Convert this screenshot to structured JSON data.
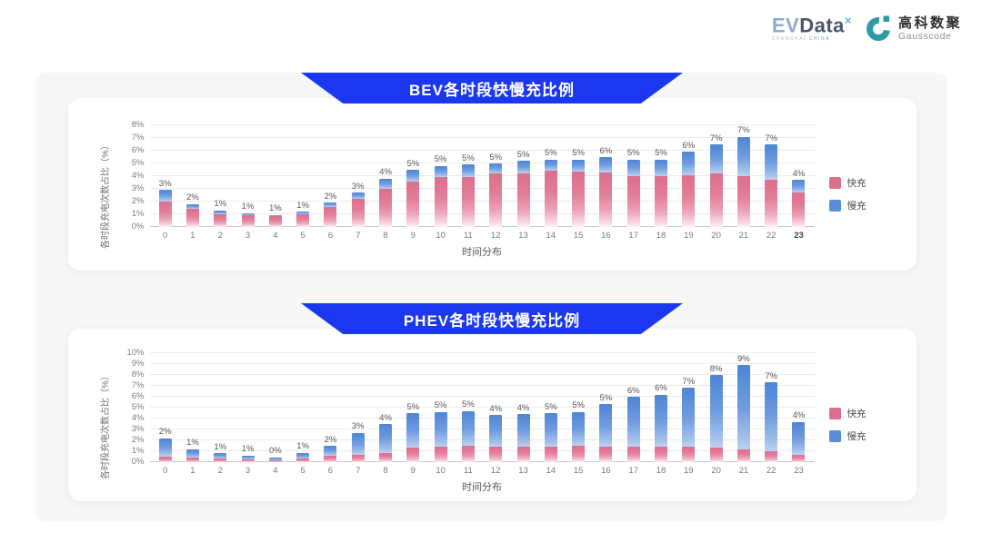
{
  "header": {
    "evdata_logo": {
      "ev": "EV",
      "data": "Data",
      "sup": "×",
      "sub_left": "SHANGHAI",
      "sub_right": "CHINA"
    },
    "gausscode_logo": {
      "cn": "高科数聚",
      "en": "Gausscode"
    }
  },
  "colors": {
    "banner_blue": "#1b38f0",
    "fast_pink": "#d9708c",
    "slow_blue": "#5b8cd8",
    "gausscode_teal": "#2d9aa8"
  },
  "chart_data": [
    {
      "type": "bar",
      "stacked": true,
      "title": "BEV各时段快慢充比例",
      "xlabel": "时间分布",
      "ylabel": "各时段充电次数占比（%）",
      "ylim": [
        0,
        8
      ],
      "grid": true,
      "legend_position": "right",
      "ytick_labels": [
        "0%",
        "1%",
        "2%",
        "3%",
        "4%",
        "5%",
        "6%",
        "7%",
        "8%"
      ],
      "categories": [
        "0",
        "1",
        "2",
        "3",
        "4",
        "5",
        "6",
        "7",
        "8",
        "9",
        "10",
        "11",
        "12",
        "13",
        "14",
        "15",
        "16",
        "17",
        "18",
        "19",
        "20",
        "21",
        "22",
        "23"
      ],
      "emphasized_tick": "23",
      "series": [
        {
          "name": "快充",
          "color": "#d9708c",
          "values": [
            2.0,
            1.4,
            1.0,
            0.9,
            0.85,
            1.0,
            1.6,
            2.2,
            3.0,
            3.6,
            3.9,
            3.9,
            4.2,
            4.2,
            4.4,
            4.35,
            4.3,
            4.0,
            4.0,
            4.1,
            4.2,
            4.0,
            3.7,
            2.7
          ]
        },
        {
          "name": "慢充",
          "color": "#5b8cd8",
          "values": [
            0.9,
            0.4,
            0.3,
            0.2,
            0.1,
            0.2,
            0.3,
            0.5,
            0.8,
            0.9,
            0.9,
            1.0,
            0.8,
            1.0,
            0.9,
            0.95,
            1.2,
            1.3,
            1.3,
            1.8,
            2.3,
            3.1,
            2.8,
            1.0
          ]
        }
      ],
      "bar_total_labels": [
        "3%",
        "2%",
        "1%",
        "1%",
        "1%",
        "1%",
        "2%",
        "3%",
        "4%",
        "5%",
        "5%",
        "5%",
        "5%",
        "5%",
        "5%",
        "5%",
        "6%",
        "5%",
        "5%",
        "6%",
        "7%",
        "7%",
        "7%",
        "4%"
      ]
    },
    {
      "type": "bar",
      "stacked": true,
      "title": "PHEV各时段快慢充比例",
      "xlabel": "时间分布",
      "ylabel": "各时段充电次数占比（%）",
      "ylim": [
        0,
        10
      ],
      "grid": true,
      "legend_position": "right",
      "ytick_labels": [
        "0%",
        "1%",
        "2%",
        "3%",
        "4%",
        "5%",
        "6%",
        "7%",
        "8%",
        "9%",
        "10%"
      ],
      "categories": [
        "0",
        "1",
        "2",
        "3",
        "4",
        "5",
        "6",
        "7",
        "8",
        "9",
        "10",
        "11",
        "12",
        "13",
        "14",
        "15",
        "16",
        "17",
        "18",
        "19",
        "20",
        "21",
        "22",
        "23"
      ],
      "emphasized_tick": "",
      "series": [
        {
          "name": "快充",
          "color": "#d9708c",
          "values": [
            0.5,
            0.4,
            0.3,
            0.25,
            0.2,
            0.35,
            0.55,
            0.7,
            0.8,
            1.3,
            1.4,
            1.5,
            1.4,
            1.4,
            1.4,
            1.5,
            1.4,
            1.4,
            1.4,
            1.4,
            1.3,
            1.2,
            1.0,
            0.7
          ]
        },
        {
          "name": "慢充",
          "color": "#5b8cd8",
          "values": [
            1.7,
            0.8,
            0.5,
            0.35,
            0.25,
            0.5,
            0.95,
            2.0,
            2.7,
            3.2,
            3.2,
            3.2,
            2.9,
            3.0,
            3.1,
            3.1,
            3.9,
            4.6,
            4.8,
            5.4,
            6.7,
            7.7,
            6.3,
            3.0
          ]
        }
      ],
      "bar_total_labels": [
        "2%",
        "1%",
        "1%",
        "1%",
        "0%",
        "1%",
        "2%",
        "3%",
        "4%",
        "5%",
        "5%",
        "5%",
        "4%",
        "4%",
        "5%",
        "5%",
        "5%",
        "6%",
        "6%",
        "7%",
        "8%",
        "9%",
        "7%",
        "4%"
      ]
    }
  ]
}
